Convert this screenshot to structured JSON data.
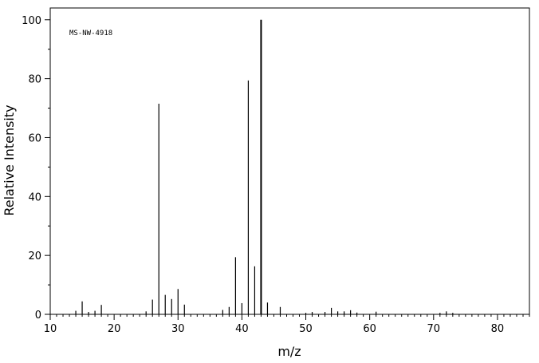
{
  "chart_data": {
    "type": "bar",
    "title": "",
    "annotation": "MS-NW-4918",
    "xlabel": "m/z",
    "ylabel": "Relative Intensity",
    "xlim": [
      10,
      85
    ],
    "ylim": [
      0,
      104
    ],
    "x_ticks": [
      10,
      20,
      30,
      40,
      50,
      60,
      70,
      80
    ],
    "y_ticks": [
      0,
      20,
      40,
      60,
      80,
      100
    ],
    "grid": false,
    "bar_color": "#000000",
    "peaks": {
      "x": [
        14,
        15,
        16,
        17,
        18,
        25,
        26,
        27,
        28,
        29,
        30,
        31,
        37,
        38,
        39,
        40,
        41,
        42,
        43,
        44,
        46,
        50,
        51,
        53,
        54,
        55,
        56,
        57,
        58,
        61,
        71,
        72,
        73
      ],
      "y": [
        1.2,
        4.4,
        0.8,
        1.2,
        3.2,
        1.0,
        5.0,
        71.5,
        6.6,
        5.2,
        8.6,
        3.3,
        1.5,
        2.5,
        19.4,
        3.8,
        79.4,
        16.3,
        100,
        4.0,
        2.5,
        0.5,
        0.8,
        0.8,
        2.2,
        1.0,
        1.0,
        1.4,
        0.6,
        0.9,
        0.5,
        1.0,
        0.5
      ]
    }
  }
}
